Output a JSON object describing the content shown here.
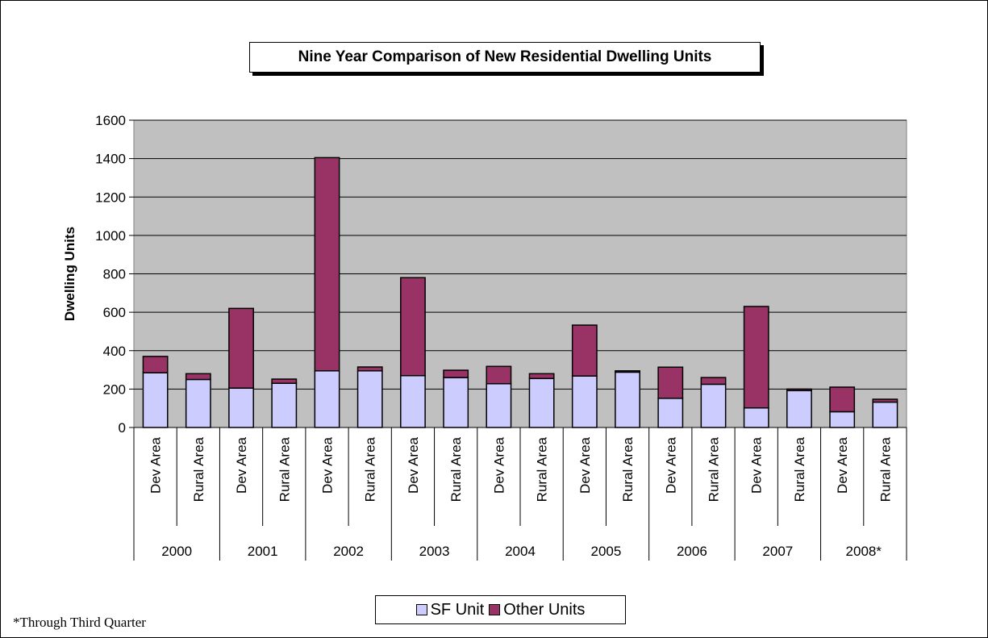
{
  "chart_data": {
    "type": "bar",
    "stacked": true,
    "title": "Nine Year Comparison of New Residential Dwelling Units",
    "ylabel": "Dwelling Units",
    "xlabel": "",
    "ylim": [
      0,
      1600
    ],
    "yticks": [
      0,
      200,
      400,
      600,
      800,
      1000,
      1200,
      1400,
      1600
    ],
    "grid": true,
    "legend_position": "bottom",
    "categories": [
      "Dev Area",
      "Rural Area",
      "Dev Area",
      "Rural Area",
      "Dev Area",
      "Rural Area",
      "Dev Area",
      "Rural Area",
      "Dev Area",
      "Rural Area",
      "Dev Area",
      "Rural Area",
      "Dev Area",
      "Rural Area",
      "Dev Area",
      "Rural Area",
      "Dev Area",
      "Rural Area"
    ],
    "groups": [
      "2000",
      "2001",
      "2002",
      "2003",
      "2004",
      "2005",
      "2006",
      "2007",
      "2008*"
    ],
    "series": [
      {
        "name": "SF Unit",
        "color": "#ccccff",
        "values": [
          285,
          250,
          205,
          230,
          295,
          295,
          270,
          260,
          228,
          255,
          268,
          288,
          152,
          225,
          102,
          192,
          82,
          132
        ]
      },
      {
        "name": "Other Units",
        "color": "#993366",
        "values": [
          85,
          30,
          415,
          22,
          1110,
          20,
          510,
          38,
          90,
          25,
          265,
          7,
          162,
          35,
          528,
          8,
          128,
          15
        ]
      }
    ],
    "footnote": "*Through Third Quarter"
  },
  "colors": {
    "plot_background": "#c0c0c0",
    "gridline": "#000000"
  }
}
